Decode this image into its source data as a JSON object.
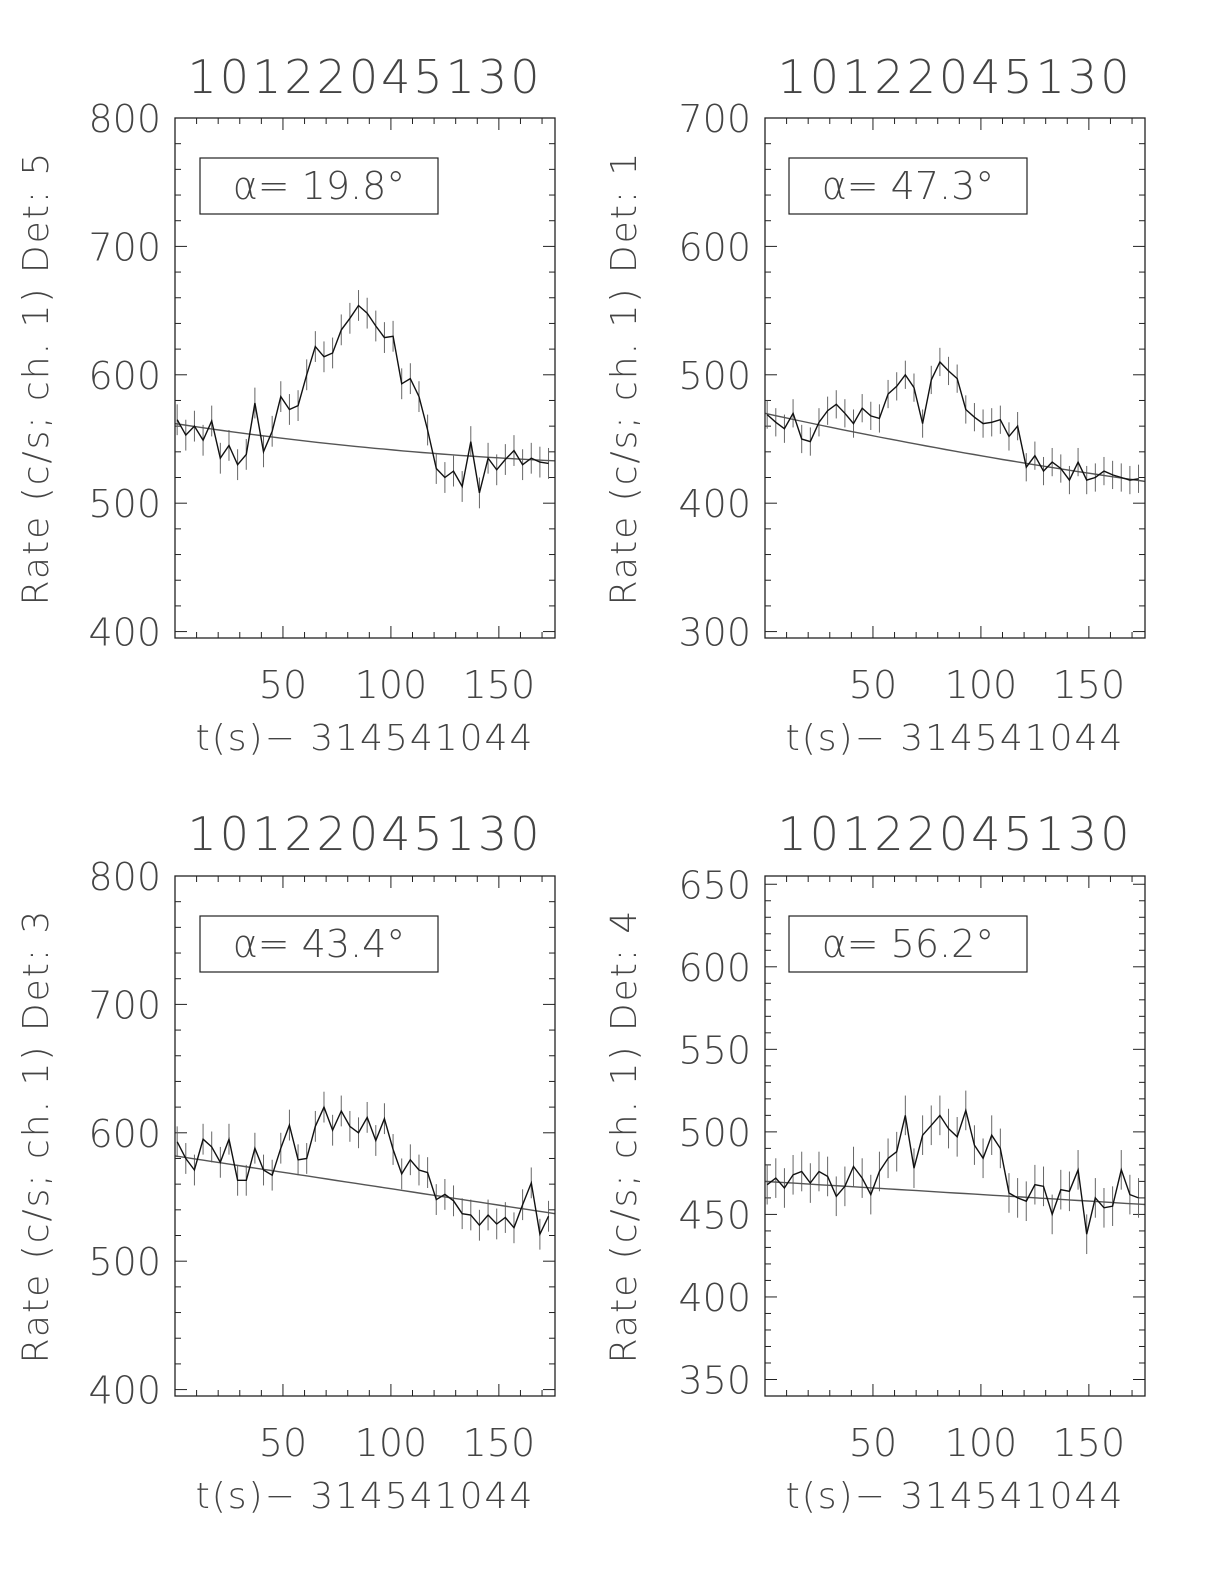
{
  "figure": {
    "xlabel": "t(s)− 314541044",
    "xticks": [
      50,
      100,
      150
    ]
  },
  "chart_data": [
    {
      "type": "line",
      "title": "10122045130",
      "ylabel": "Rate (c/s; ch. 1) Det: 5",
      "annotation": "α=  19.8°",
      "xlim": [
        0,
        176
      ],
      "ylim": [
        395,
        800
      ],
      "yticks": [
        400,
        500,
        600,
        700,
        800
      ],
      "x": [
        1,
        5,
        9,
        13,
        17,
        21,
        25,
        29,
        33,
        37,
        41,
        45,
        49,
        53,
        57,
        61,
        65,
        69,
        73,
        77,
        81,
        85,
        89,
        93,
        97,
        101,
        105,
        109,
        113,
        117,
        121,
        125,
        129,
        133,
        137,
        141,
        145,
        149,
        153,
        157,
        161,
        165,
        169,
        173
      ],
      "values": [
        565,
        553,
        560,
        549,
        564,
        535,
        545,
        530,
        538,
        578,
        540,
        556,
        583,
        573,
        576,
        600,
        622,
        614,
        617,
        635,
        644,
        654,
        648,
        638,
        629,
        630,
        593,
        597,
        583,
        557,
        527,
        520,
        525,
        513,
        548,
        508,
        535,
        526,
        534,
        541,
        530,
        535,
        532,
        531
      ],
      "errors": [
        12,
        12,
        12,
        12,
        12,
        12,
        12,
        12,
        12,
        12,
        12,
        12,
        12,
        12,
        12,
        12,
        12,
        12,
        12,
        12,
        12,
        12,
        12,
        12,
        12,
        12,
        12,
        12,
        12,
        12,
        12,
        12,
        12,
        12,
        12,
        12,
        12,
        12,
        12,
        12,
        12,
        12,
        12,
        12
      ],
      "fit": {
        "x": [
          0,
          176
        ],
        "values": [
          562,
          533
        ],
        "curvature": -4
      }
    },
    {
      "type": "line",
      "title": "10122045130",
      "ylabel": "Rate (c/s; ch. 1) Det: 1",
      "annotation": "α=  47.3°",
      "xlim": [
        0,
        176
      ],
      "ylim": [
        295,
        700
      ],
      "yticks": [
        300,
        400,
        500,
        600,
        700
      ],
      "x": [
        1,
        5,
        9,
        13,
        17,
        21,
        25,
        29,
        33,
        37,
        41,
        45,
        49,
        53,
        57,
        61,
        65,
        69,
        73,
        77,
        81,
        85,
        89,
        93,
        97,
        101,
        105,
        109,
        113,
        117,
        121,
        125,
        129,
        133,
        137,
        141,
        145,
        149,
        153,
        157,
        161,
        165,
        169,
        173
      ],
      "values": [
        469,
        463,
        458,
        470,
        450,
        448,
        463,
        472,
        477,
        470,
        462,
        474,
        468,
        466,
        485,
        491,
        500,
        490,
        462,
        496,
        510,
        503,
        497,
        473,
        467,
        462,
        463,
        465,
        452,
        460,
        428,
        437,
        425,
        432,
        427,
        418,
        432,
        418,
        420,
        425,
        422,
        420,
        418,
        419
      ],
      "errors": [
        11,
        11,
        11,
        11,
        11,
        11,
        11,
        11,
        11,
        11,
        11,
        11,
        11,
        11,
        11,
        11,
        11,
        11,
        11,
        11,
        11,
        11,
        11,
        11,
        11,
        11,
        11,
        11,
        11,
        11,
        11,
        11,
        11,
        11,
        11,
        11,
        11,
        11,
        11,
        11,
        11,
        11,
        11,
        11
      ],
      "fit": {
        "x": [
          0,
          176
        ],
        "values": [
          470,
          417
        ],
        "curvature": -3
      }
    },
    {
      "type": "line",
      "title": "10122045130",
      "ylabel": "Rate (c/s; ch. 1) Det: 3",
      "annotation": "α=  43.4°",
      "xlim": [
        0,
        176
      ],
      "ylim": [
        395,
        800
      ],
      "yticks": [
        400,
        500,
        600,
        700,
        800
      ],
      "x": [
        1,
        5,
        9,
        13,
        17,
        21,
        25,
        29,
        33,
        37,
        41,
        45,
        49,
        53,
        57,
        61,
        65,
        69,
        73,
        77,
        81,
        85,
        89,
        93,
        97,
        101,
        105,
        109,
        113,
        117,
        121,
        125,
        129,
        133,
        137,
        141,
        145,
        149,
        153,
        157,
        161,
        165,
        169,
        173
      ],
      "values": [
        593,
        580,
        571,
        595,
        589,
        577,
        595,
        563,
        563,
        588,
        571,
        567,
        588,
        606,
        579,
        580,
        605,
        620,
        602,
        617,
        605,
        600,
        612,
        594,
        611,
        587,
        568,
        579,
        571,
        569,
        548,
        552,
        547,
        537,
        536,
        528,
        536,
        529,
        534,
        526,
        544,
        561,
        521,
        535
      ],
      "errors": [
        12,
        12,
        12,
        12,
        12,
        12,
        12,
        12,
        12,
        12,
        12,
        12,
        12,
        12,
        12,
        12,
        12,
        12,
        12,
        12,
        12,
        12,
        12,
        12,
        12,
        12,
        12,
        12,
        12,
        12,
        12,
        12,
        12,
        12,
        12,
        12,
        12,
        12,
        12,
        12,
        12,
        12,
        12,
        12
      ],
      "fit": {
        "x": [
          0,
          176
        ],
        "values": [
          582,
          537
        ],
        "curvature": 0
      }
    },
    {
      "type": "line",
      "title": "10122045130",
      "ylabel": "Rate (c/s; ch. 1) Det: 4",
      "annotation": "α=  56.2°",
      "xlim": [
        0,
        176
      ],
      "ylim": [
        340,
        655
      ],
      "yticks": [
        350,
        400,
        450,
        500,
        550,
        600,
        650
      ],
      "x": [
        1,
        5,
        9,
        13,
        17,
        21,
        25,
        29,
        33,
        37,
        41,
        45,
        49,
        53,
        57,
        61,
        65,
        69,
        73,
        77,
        81,
        85,
        89,
        93,
        97,
        101,
        105,
        109,
        113,
        117,
        121,
        125,
        129,
        133,
        137,
        141,
        145,
        149,
        153,
        157,
        161,
        165,
        169,
        173
      ],
      "values": [
        468,
        472,
        466,
        474,
        476,
        469,
        476,
        473,
        461,
        467,
        479,
        472,
        462,
        476,
        484,
        488,
        510,
        478,
        498,
        504,
        510,
        502,
        497,
        513,
        492,
        484,
        498,
        490,
        463,
        460,
        458,
        468,
        467,
        450,
        465,
        464,
        477,
        438,
        460,
        454,
        455,
        477,
        462,
        460
      ],
      "errors": [
        12,
        12,
        12,
        12,
        12,
        12,
        12,
        12,
        12,
        12,
        12,
        12,
        12,
        12,
        12,
        12,
        12,
        12,
        12,
        12,
        12,
        12,
        12,
        12,
        12,
        12,
        12,
        12,
        12,
        12,
        12,
        12,
        12,
        12,
        12,
        12,
        12,
        12,
        12,
        12,
        12,
        12,
        12,
        12
      ],
      "fit": {
        "x": [
          0,
          176
        ],
        "values": [
          470,
          456
        ],
        "curvature": 0
      }
    }
  ]
}
